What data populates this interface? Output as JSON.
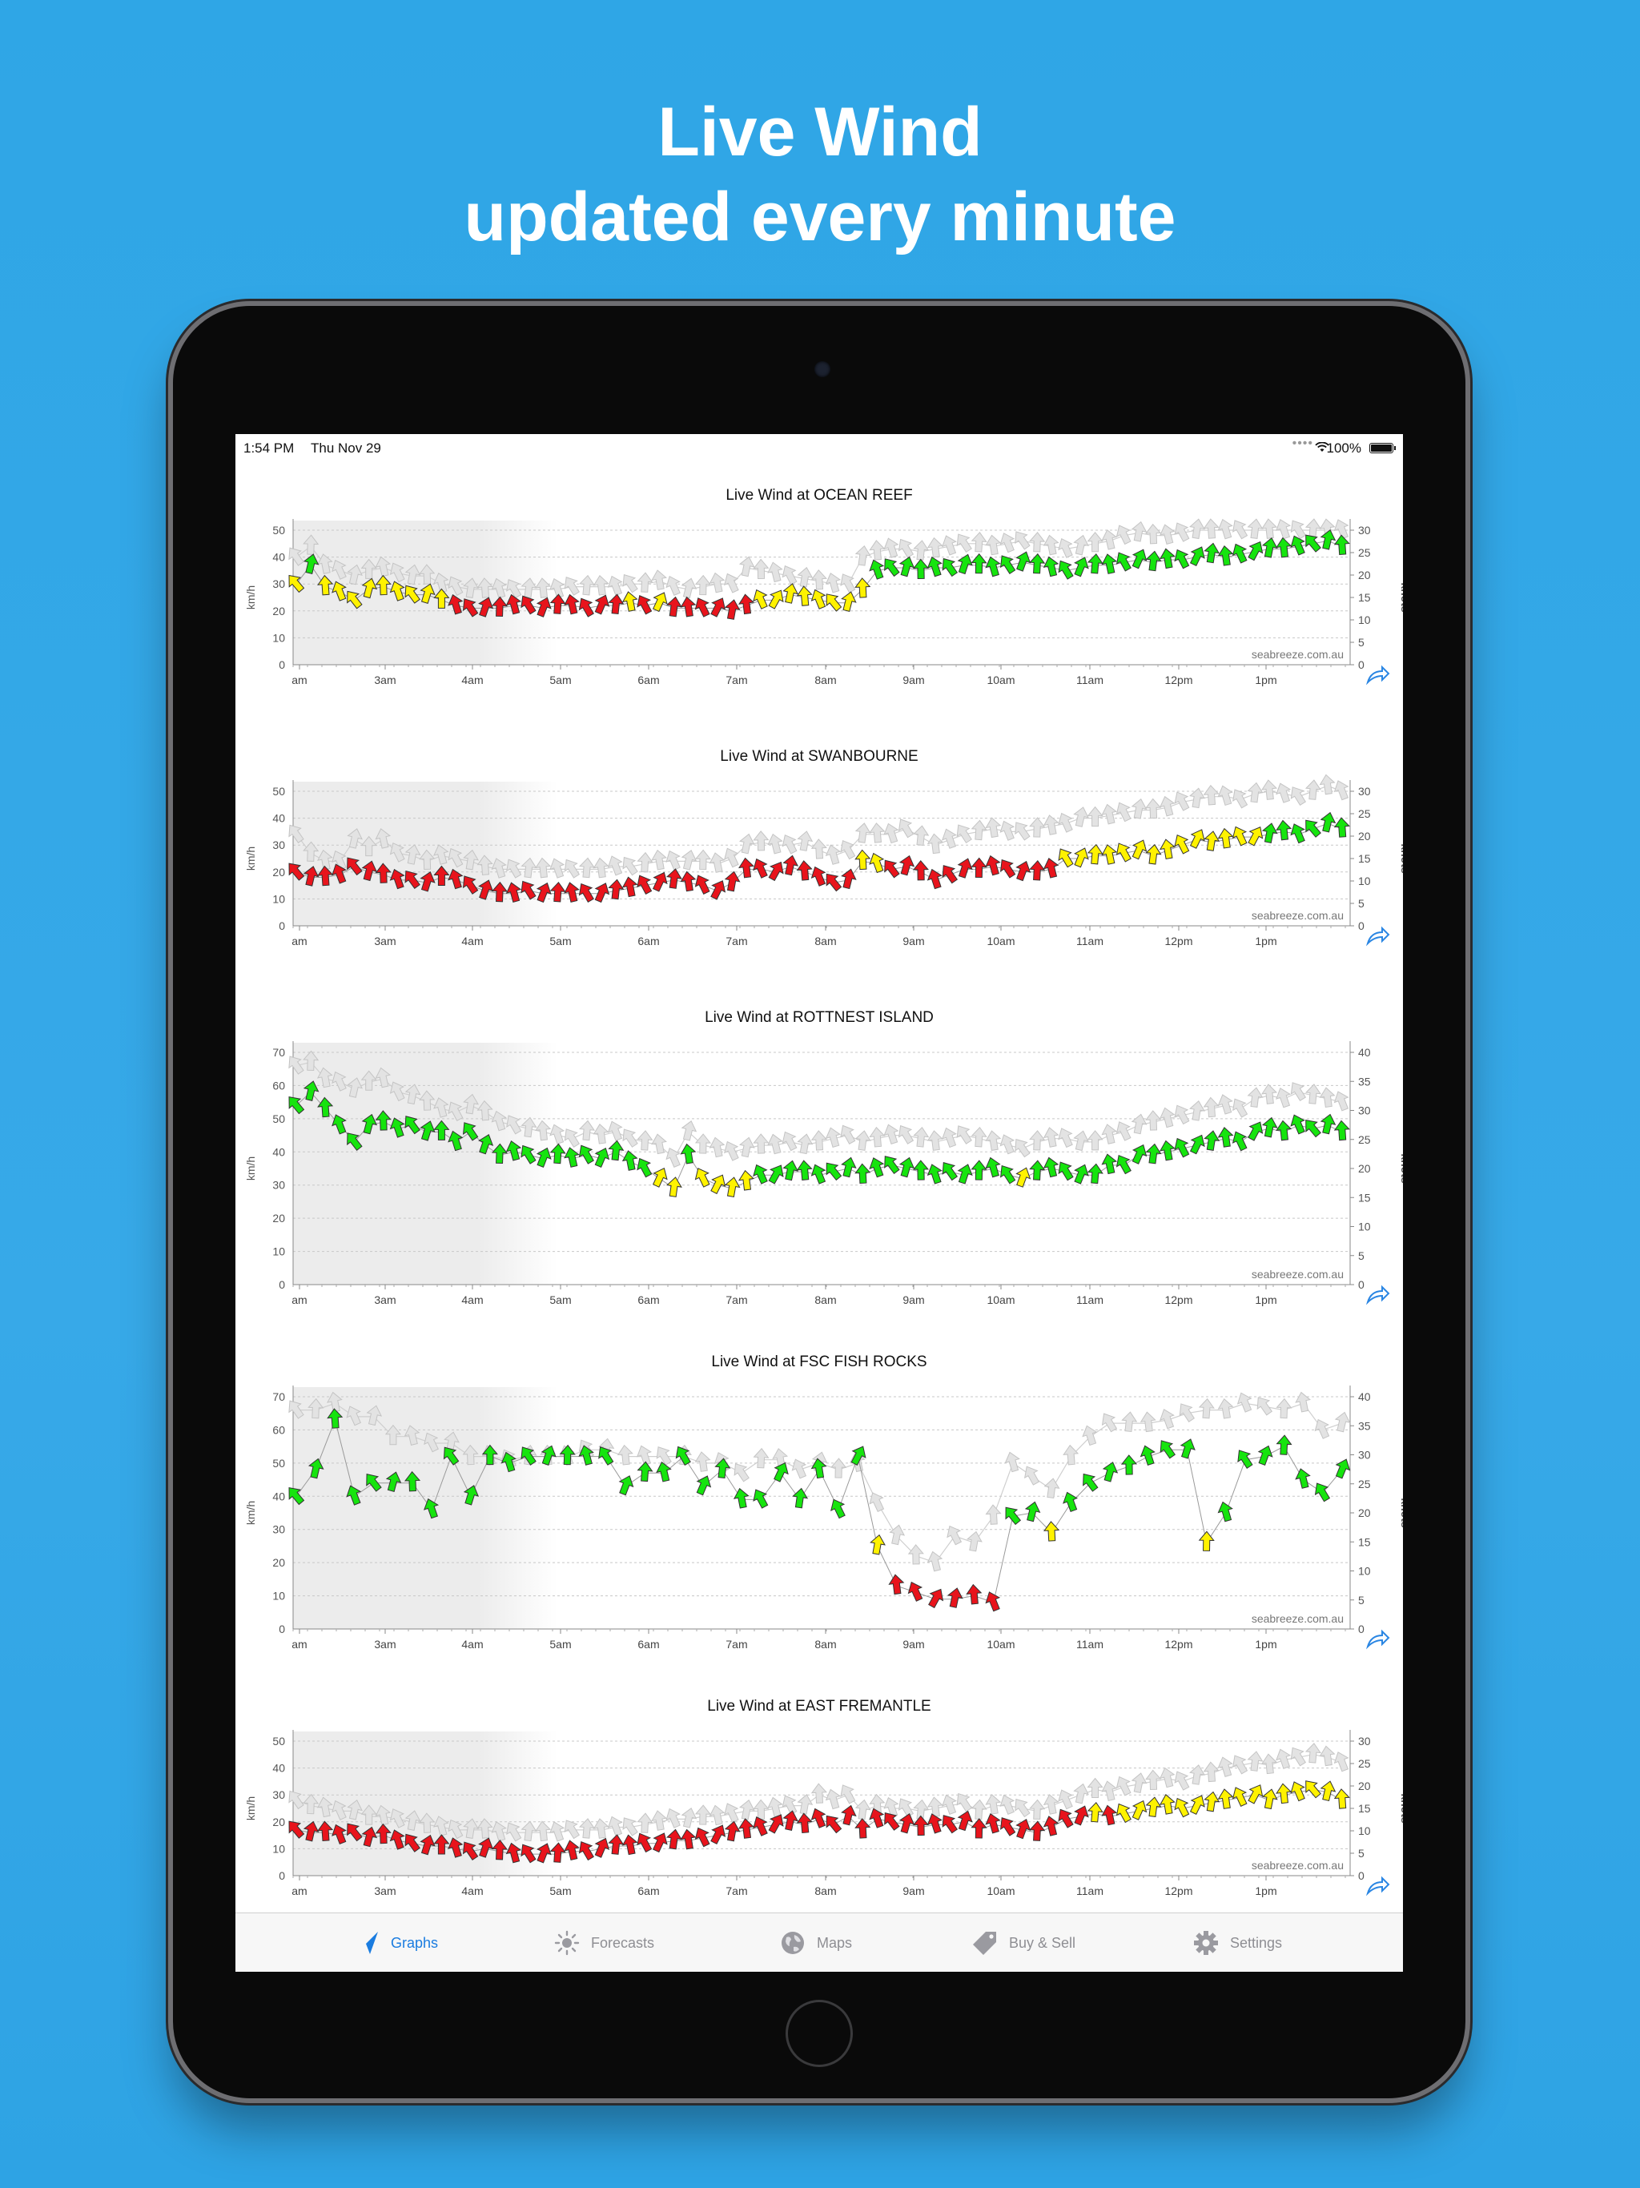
{
  "headline": {
    "line1": "Live Wind",
    "line2": "updated every minute"
  },
  "status_bar": {
    "time": "1:54 PM",
    "date": "Thu Nov 29",
    "battery": "100%"
  },
  "charts_common": {
    "x_ticks": [
      "am",
      "3am",
      "4am",
      "5am",
      "6am",
      "7am",
      "8am",
      "9am",
      "10am",
      "11am",
      "12pm",
      "1pm"
    ],
    "left_unit": "km/h",
    "right_unit": "knots",
    "watermark": "seabreeze.com.au",
    "colors": {
      "red": "#e8141c",
      "yellow": "#fff200",
      "green": "#16e40e",
      "grey": "#e3e3e3",
      "night_shade": "#ececec"
    }
  },
  "chart_data": [
    {
      "type": "line",
      "title": "Live Wind at OCEAN REEF",
      "ylabel_left": "km/h",
      "ylabel_right": "knots",
      "ylim": [
        0,
        50
      ],
      "y2lim": [
        0,
        30
      ],
      "y_ticks": [
        0,
        10,
        20,
        30,
        40,
        50
      ],
      "y2_ticks": [
        0,
        5,
        10,
        15,
        20,
        25,
        30
      ],
      "series": [
        {
          "values": [
            30,
            37,
            29,
            27,
            24,
            28,
            29,
            27,
            26,
            26,
            24,
            22,
            21,
            21,
            21,
            22,
            22,
            21,
            22,
            22,
            21,
            22,
            22,
            23,
            22,
            23,
            21,
            21,
            21,
            21,
            20,
            22,
            24,
            24,
            26,
            25,
            24,
            23,
            23,
            28,
            35,
            36,
            36,
            35,
            36,
            36,
            37,
            37,
            36,
            37,
            38,
            37,
            36,
            35,
            36,
            37,
            37,
            38,
            39,
            38,
            39,
            39,
            40,
            41,
            40,
            41,
            42,
            43,
            43,
            44,
            45,
            46,
            44
          ]
        },
        {
          "values": [
            40,
            44,
            37,
            35,
            33,
            35,
            36,
            34,
            33,
            33,
            30,
            29,
            28,
            28,
            28,
            28,
            28,
            28,
            28,
            29,
            29,
            29,
            29,
            30,
            30,
            31,
            29,
            28,
            29,
            30,
            30,
            36,
            35,
            34,
            33,
            32,
            31,
            30,
            30,
            40,
            42,
            43,
            43,
            42,
            43,
            44,
            45,
            45,
            44,
            45,
            46,
            45,
            44,
            43,
            44,
            45,
            46,
            48,
            49,
            48,
            48,
            49,
            50,
            50,
            50,
            50,
            50,
            50,
            50,
            50,
            50,
            50,
            50
          ]
        }
      ]
    },
    {
      "type": "line",
      "title": "Live Wind at SWANBOURNE",
      "ylabel_left": "km/h",
      "ylabel_right": "knots",
      "ylim": [
        0,
        50
      ],
      "y2lim": [
        0,
        30
      ],
      "y_ticks": [
        0,
        10,
        20,
        30,
        40,
        50
      ],
      "y2_ticks": [
        0,
        5,
        10,
        15,
        20,
        25,
        30
      ],
      "series": [
        {
          "values": [
            20,
            18,
            18,
            19,
            22,
            20,
            19,
            17,
            17,
            16,
            18,
            17,
            15,
            13,
            12,
            12,
            13,
            12,
            12,
            12,
            12,
            12,
            13,
            14,
            15,
            16,
            17,
            16,
            15,
            13,
            16,
            21,
            21,
            20,
            22,
            20,
            18,
            16,
            17,
            24,
            23,
            21,
            22,
            20,
            17,
            19,
            21,
            21,
            22,
            21,
            20,
            20,
            21,
            25,
            25,
            26,
            26,
            27,
            28,
            26,
            28,
            30,
            32,
            31,
            32,
            33,
            33,
            34,
            35,
            34,
            36,
            38,
            36
          ]
        },
        {
          "values": [
            34,
            27,
            24,
            24,
            32,
            29,
            32,
            27,
            26,
            24,
            26,
            25,
            24,
            22,
            21,
            21,
            21,
            21,
            21,
            21,
            21,
            21,
            22,
            22,
            23,
            24,
            24,
            24,
            24,
            23,
            25,
            30,
            31,
            30,
            30,
            31,
            28,
            26,
            28,
            34,
            34,
            34,
            36,
            33,
            30,
            32,
            34,
            35,
            36,
            35,
            35,
            36,
            37,
            38,
            40,
            40,
            41,
            42,
            43,
            43,
            44,
            46,
            47,
            48,
            48,
            47,
            49,
            50,
            49,
            48,
            50,
            52,
            50
          ]
        }
      ]
    },
    {
      "type": "line",
      "title": "Live Wind at ROTTNEST ISLAND",
      "ylabel_left": "km/h",
      "ylabel_right": "knots",
      "ylim": [
        0,
        70
      ],
      "y2lim": [
        0,
        40
      ],
      "y_ticks": [
        0,
        10,
        20,
        30,
        40,
        50,
        60,
        70
      ],
      "y2_ticks": [
        0,
        5,
        10,
        15,
        20,
        25,
        30,
        35,
        40
      ],
      "series": [
        {
          "values": [
            54,
            58,
            53,
            48,
            43,
            48,
            49,
            47,
            48,
            46,
            46,
            43,
            46,
            42,
            39,
            40,
            39,
            38,
            39,
            38,
            39,
            38,
            40,
            37,
            35,
            32,
            29,
            39,
            32,
            30,
            29,
            31,
            33,
            33,
            34,
            34,
            33,
            34,
            35,
            33,
            35,
            36,
            35,
            34,
            33,
            34,
            33,
            34,
            35,
            33,
            32,
            34,
            35,
            34,
            33,
            33,
            36,
            36,
            39,
            39,
            40,
            41,
            42,
            43,
            44,
            43,
            46,
            47,
            46,
            48,
            47,
            48,
            46
          ]
        },
        {
          "values": [
            66,
            67,
            62,
            61,
            59,
            61,
            62,
            58,
            57,
            55,
            53,
            52,
            54,
            52,
            49,
            48,
            47,
            46,
            45,
            44,
            46,
            45,
            46,
            44,
            43,
            42,
            38,
            46,
            42,
            41,
            40,
            41,
            42,
            42,
            43,
            42,
            43,
            44,
            45,
            43,
            44,
            45,
            45,
            44,
            43,
            44,
            45,
            44,
            43,
            42,
            41,
            43,
            44,
            44,
            43,
            43,
            45,
            46,
            48,
            49,
            50,
            51,
            52,
            53,
            54,
            53,
            56,
            57,
            56,
            58,
            57,
            56,
            55
          ]
        }
      ]
    },
    {
      "type": "line",
      "title": "Live Wind at FSC FISH ROCKS",
      "ylabel_left": "km/h",
      "ylabel_right": "knots",
      "ylim": [
        0,
        70
      ],
      "y2lim": [
        0,
        40
      ],
      "y_ticks": [
        0,
        10,
        20,
        30,
        40,
        50,
        60,
        70
      ],
      "y2_ticks": [
        0,
        5,
        10,
        15,
        20,
        25,
        30,
        35,
        40
      ],
      "series": [
        {
          "values": [
            40,
            48,
            63,
            40,
            44,
            44,
            44,
            36,
            52,
            40,
            52,
            50,
            52,
            52,
            52,
            52,
            52,
            43,
            47,
            47,
            52,
            43,
            48,
            39,
            39,
            47,
            39,
            48,
            36,
            52,
            25,
            13,
            11,
            9,
            9,
            10,
            8,
            34,
            35,
            29,
            38,
            44,
            47,
            49,
            52,
            54,
            54,
            26,
            35,
            51,
            52,
            55,
            45,
            41,
            48
          ]
        },
        {
          "values": [
            66,
            66,
            68,
            64,
            64,
            58,
            58,
            56,
            56,
            52,
            52,
            51,
            52,
            52,
            52,
            54,
            54,
            52,
            52,
            52,
            52,
            50,
            50,
            47,
            51,
            51,
            48,
            50,
            48,
            50,
            38,
            28,
            22,
            20,
            28,
            26,
            34,
            50,
            46,
            42,
            52,
            58,
            62,
            62,
            62,
            63,
            65,
            66,
            66,
            68,
            67,
            66,
            68,
            60,
            62
          ]
        }
      ]
    },
    {
      "type": "line",
      "title": "Live Wind at EAST FREMANTLE",
      "ylabel_left": "km/h",
      "ylabel_right": "knots",
      "ylim": [
        0,
        50
      ],
      "y2lim": [
        0,
        30
      ],
      "y_ticks": [
        0,
        10,
        20,
        30,
        40,
        50
      ],
      "y2_ticks": [
        0,
        5,
        10,
        15,
        20,
        25,
        30
      ],
      "series": [
        {
          "values": [
            17,
            16,
            16,
            15,
            16,
            14,
            15,
            13,
            12,
            11,
            11,
            10,
            9,
            10,
            9,
            8,
            8,
            8,
            8,
            9,
            9,
            10,
            11,
            11,
            12,
            12,
            13,
            13,
            14,
            15,
            16,
            17,
            18,
            19,
            20,
            19,
            21,
            19,
            22,
            17,
            21,
            20,
            19,
            18,
            19,
            19,
            20,
            17,
            19,
            18,
            17,
            16,
            18,
            21,
            22,
            23,
            22,
            23,
            24,
            25,
            26,
            25,
            26,
            27,
            28,
            29,
            30,
            28,
            30,
            31,
            32,
            31,
            28
          ]
        },
        {
          "values": [
            28,
            26,
            25,
            24,
            24,
            22,
            22,
            21,
            20,
            19,
            18,
            17,
            17,
            17,
            16,
            16,
            16,
            16,
            16,
            17,
            17,
            17,
            18,
            18,
            19,
            20,
            21,
            21,
            22,
            22,
            23,
            24,
            24,
            25,
            26,
            26,
            30,
            28,
            30,
            24,
            26,
            25,
            25,
            24,
            25,
            26,
            27,
            24,
            26,
            26,
            25,
            24,
            26,
            28,
            30,
            32,
            31,
            33,
            34,
            35,
            36,
            35,
            37,
            38,
            40,
            41,
            42,
            41,
            43,
            44,
            45,
            44,
            42
          ]
        }
      ]
    }
  ],
  "tabs": [
    {
      "label": "Graphs",
      "icon": "paper-plane-icon",
      "active": true
    },
    {
      "label": "Forecasts",
      "icon": "sun-icon",
      "active": false
    },
    {
      "label": "Maps",
      "icon": "globe-icon",
      "active": false
    },
    {
      "label": "Buy & Sell",
      "icon": "tag-icon",
      "active": false
    },
    {
      "label": "Settings",
      "icon": "gear-icon",
      "active": false
    }
  ]
}
